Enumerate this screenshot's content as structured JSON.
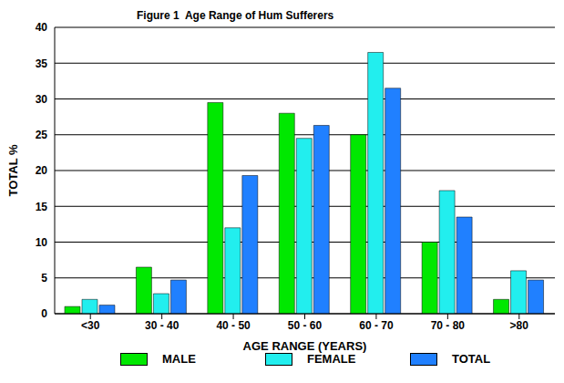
{
  "chart_data": {
    "type": "bar",
    "title": "Figure 1  Age Range of Hum Sufferers",
    "x_label": "AGE RANGE (YEARS)",
    "y_label": "TOTAL %",
    "categories": [
      "<30",
      "30 - 40",
      "40 - 50",
      "50 - 60",
      "60 - 70",
      "70 - 80",
      ">80"
    ],
    "series": [
      {
        "name": "MALE",
        "color": "#00e800",
        "values": [
          1,
          6.5,
          29.5,
          28,
          25,
          10,
          2
        ]
      },
      {
        "name": "FEMALE",
        "color": "#22eeee",
        "values": [
          2,
          2.8,
          12,
          24.5,
          36.5,
          17.2,
          6
        ]
      },
      {
        "name": "TOTAL",
        "color": "#2080ff",
        "values": [
          1.2,
          4.7,
          19.3,
          26.3,
          31.5,
          13.5,
          4.7
        ]
      }
    ],
    "ylim": [
      0,
      40
    ],
    "yticks": [
      0,
      5,
      10,
      15,
      20,
      25,
      30,
      35,
      40
    ],
    "grid": true,
    "legend": "bottom"
  }
}
